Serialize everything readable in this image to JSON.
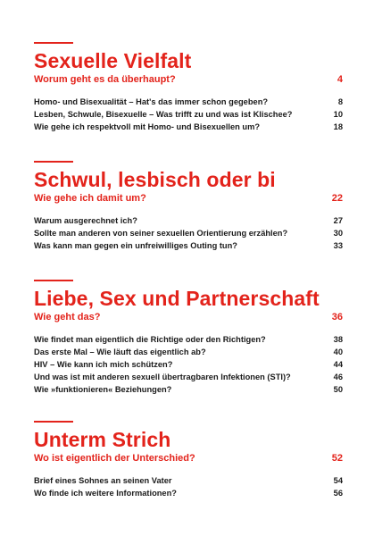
{
  "accent": "#e3231b",
  "sections": [
    {
      "title": "Sexuelle Vielfalt",
      "subtitle": "Worum geht es da überhaupt?",
      "subtitle_page": "4",
      "entries": [
        {
          "text": "Homo- und Bisexualität – Hat's das immer schon gegeben?",
          "page": "8"
        },
        {
          "text": "Lesben, Schwule, Bisexuelle – Was trifft zu und was ist Klischee?",
          "page": "10"
        },
        {
          "text": "Wie gehe ich respektvoll mit Homo- und Bisexuellen um?",
          "page": "18"
        }
      ]
    },
    {
      "title": "Schwul, lesbisch oder bi",
      "subtitle": "Wie gehe ich damit um?",
      "subtitle_page": "22",
      "entries": [
        {
          "text": "Warum ausgerechnet ich?",
          "page": "27"
        },
        {
          "text": "Sollte man anderen von seiner sexuellen Orientierung erzählen?",
          "page": "30"
        },
        {
          "text": "Was kann man gegen ein unfreiwilliges Outing tun?",
          "page": "33"
        }
      ]
    },
    {
      "title": "Liebe, Sex und Partnerschaft",
      "subtitle": "Wie geht das?",
      "subtitle_page": "36",
      "entries": [
        {
          "text": "Wie findet man eigentlich die Richtige oder den Richtigen?",
          "page": "38"
        },
        {
          "text": "Das erste Mal – Wie läuft das eigentlich ab?",
          "page": "40"
        },
        {
          "text": "HIV – Wie kann ich mich schützen?",
          "page": "44"
        },
        {
          "text": "Und was ist mit anderen sexuell übertragbaren Infektionen (STI)?",
          "page": "46"
        },
        {
          "text": "Wie »funktionieren« Beziehungen?",
          "page": "50"
        }
      ]
    },
    {
      "title": "Unterm Strich",
      "subtitle": "Wo ist eigentlich der Unterschied?",
      "subtitle_page": "52",
      "entries": [
        {
          "text": "Brief eines Sohnes an seinen Vater",
          "page": "54"
        },
        {
          "text": "Wo finde ich weitere Informationen?",
          "page": "56"
        }
      ]
    }
  ]
}
